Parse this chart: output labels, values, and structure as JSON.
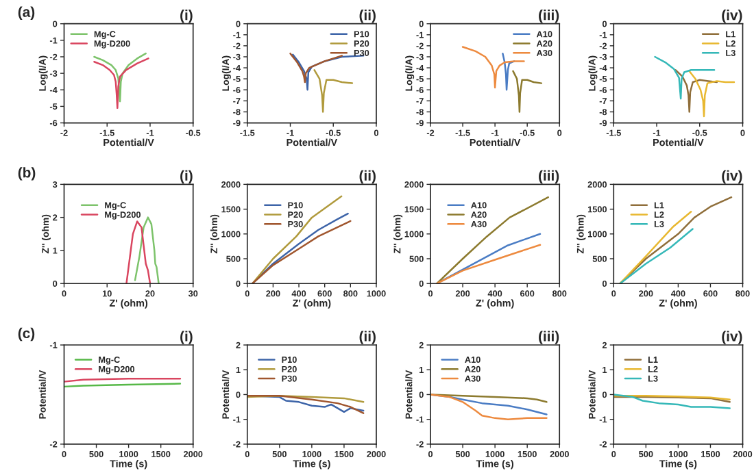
{
  "chart_data": [
    {
      "type": "line",
      "title": "(i)",
      "annotations": [
        "(a)"
      ],
      "xlabel": "Potential/V",
      "ylabel": "Log(I/A)",
      "xlim": [
        -2,
        -0.5
      ],
      "xticks": [
        -2,
        -1.5,
        -1,
        -0.5
      ],
      "ylim": [
        -6,
        0
      ],
      "yticks": [
        0,
        -1,
        -2,
        -3,
        -4,
        -5,
        -6
      ],
      "legend": "top left",
      "grid": false,
      "series": [
        {
          "name": "Mg-C",
          "color": "#7dc36b",
          "x": [
            -1.65,
            -1.55,
            -1.45,
            -1.4,
            -1.37,
            -1.36,
            -1.35,
            -1.34,
            -1.32,
            -1.25,
            -1.15,
            -1.05
          ],
          "values": [
            -2.0,
            -2.2,
            -2.5,
            -2.8,
            -3.3,
            -4.0,
            -4.7,
            -3.5,
            -3.0,
            -2.5,
            -2.1,
            -1.8
          ]
        },
        {
          "name": "Mg-D200",
          "color": "#d9455f",
          "x": [
            -1.65,
            -1.55,
            -1.47,
            -1.42,
            -1.4,
            -1.39,
            -1.38,
            -1.37,
            -1.35,
            -1.28,
            -1.15,
            -1.02
          ],
          "values": [
            -2.3,
            -2.5,
            -2.8,
            -3.1,
            -3.5,
            -4.2,
            -5.1,
            -3.8,
            -3.2,
            -2.8,
            -2.4,
            -2.1
          ]
        }
      ]
    },
    {
      "type": "line",
      "title": "(ii)",
      "xlabel": "Potential/V",
      "ylabel": "Log(I/A)",
      "xlim": [
        -1.5,
        0
      ],
      "xticks": [
        -1.5,
        -1,
        -0.5,
        0
      ],
      "ylim": [
        -9,
        0
      ],
      "yticks": [
        0,
        -1,
        -2,
        -3,
        -4,
        -5,
        -6,
        -7,
        -8,
        -9
      ],
      "legend": "top right",
      "grid": false,
      "series": [
        {
          "name": "P10",
          "color": "#3d64a8",
          "x": [
            -0.97,
            -0.9,
            -0.84,
            -0.81,
            -0.8,
            -0.79,
            -0.75,
            -0.6,
            -0.4,
            -0.15
          ],
          "values": [
            -2.8,
            -3.5,
            -4.3,
            -5.0,
            -6.0,
            -4.4,
            -3.9,
            -3.4,
            -3.0,
            -2.9
          ]
        },
        {
          "name": "P20",
          "color": "#b09a3c",
          "x": [
            -0.72,
            -0.66,
            -0.63,
            -0.62,
            -0.61,
            -0.58,
            -0.5,
            -0.4,
            -0.28
          ],
          "values": [
            -4.2,
            -5.0,
            -6.5,
            -8.0,
            -6.3,
            -5.1,
            -5.1,
            -5.3,
            -5.4
          ]
        },
        {
          "name": "P30",
          "color": "#a0562e",
          "x": [
            -1.0,
            -0.92,
            -0.86,
            -0.84,
            -0.83,
            -0.82,
            -0.78,
            -0.6,
            -0.4
          ],
          "values": [
            -2.7,
            -3.5,
            -4.3,
            -4.8,
            -5.3,
            -4.5,
            -4.0,
            -3.4,
            -2.9
          ]
        }
      ]
    },
    {
      "type": "line",
      "title": "(iii)",
      "xlabel": "Potential/V",
      "ylabel": "Log(I/A)",
      "xlim": [
        -2,
        0
      ],
      "xticks": [
        -2,
        -1.5,
        -1,
        -0.5,
        0
      ],
      "ylim": [
        -9,
        0
      ],
      "yticks": [
        0,
        -1,
        -2,
        -3,
        -4,
        -5,
        -6,
        -7,
        -8,
        -9
      ],
      "legend": "top right",
      "grid": false,
      "series": [
        {
          "name": "A10",
          "color": "#4a7cc4",
          "x": [
            -0.88,
            -0.85,
            -0.83,
            -0.82,
            -0.8,
            -0.78,
            -0.7
          ],
          "values": [
            -2.7,
            -3.5,
            -4.6,
            -6.0,
            -4.2,
            -3.6,
            -3.4
          ]
        },
        {
          "name": "A20",
          "color": "#8c7a2e",
          "x": [
            -0.72,
            -0.66,
            -0.63,
            -0.62,
            -0.61,
            -0.58,
            -0.5,
            -0.4,
            -0.28
          ],
          "values": [
            -4.3,
            -5.0,
            -6.5,
            -8.0,
            -6.3,
            -5.1,
            -5.1,
            -5.3,
            -5.4
          ]
        },
        {
          "name": "A30",
          "color": "#ed8a3f",
          "x": [
            -1.5,
            -1.3,
            -1.15,
            -1.05,
            -1.01,
            -1.0,
            -0.98,
            -0.93,
            -0.85,
            -0.7,
            -0.55
          ],
          "values": [
            -2.1,
            -2.5,
            -3.0,
            -3.8,
            -4.6,
            -5.8,
            -4.3,
            -3.8,
            -3.5,
            -3.4,
            -3.4
          ]
        }
      ]
    },
    {
      "type": "line",
      "title": "(iv)",
      "xlabel": "Potential/V",
      "ylabel": "Log(I/A)",
      "xlim": [
        -1.5,
        0
      ],
      "xticks": [
        -1.5,
        -1,
        -0.5,
        0
      ],
      "ylim": [
        -9,
        0
      ],
      "yticks": [
        0,
        -1,
        -2,
        -3,
        -4,
        -5,
        -6,
        -7,
        -8,
        -9
      ],
      "legend": "top right",
      "grid": false,
      "series": [
        {
          "name": "L1",
          "color": "#8f6e3a",
          "x": [
            -0.78,
            -0.7,
            -0.65,
            -0.63,
            -0.62,
            -0.61,
            -0.58,
            -0.5,
            -0.4,
            -0.3
          ],
          "values": [
            -4.2,
            -4.8,
            -5.6,
            -6.5,
            -8.0,
            -6.2,
            -5.3,
            -5.1,
            -5.2,
            -5.3
          ]
        },
        {
          "name": "L2",
          "color": "#e8b830",
          "x": [
            -0.62,
            -0.55,
            -0.49,
            -0.46,
            -0.45,
            -0.44,
            -0.41,
            -0.3,
            -0.2,
            -0.1
          ],
          "values": [
            -4.3,
            -5.0,
            -6.0,
            -7.0,
            -8.4,
            -6.5,
            -5.4,
            -5.2,
            -5.3,
            -5.3
          ]
        },
        {
          "name": "L3",
          "color": "#35b8b8",
          "x": [
            -1.02,
            -0.9,
            -0.8,
            -0.74,
            -0.72,
            -0.71,
            -0.68,
            -0.6,
            -0.45,
            -0.33
          ],
          "values": [
            -3.0,
            -3.5,
            -4.1,
            -4.9,
            -6.8,
            -5.0,
            -4.4,
            -4.2,
            -4.2,
            -4.2
          ]
        }
      ]
    },
    {
      "type": "line",
      "title": "(i)",
      "annotations": [
        "(b)"
      ],
      "xlabel": "Z' (ohm)",
      "ylabel": "Z'' (ohm)",
      "xlim": [
        0,
        30
      ],
      "xticks": [
        0,
        10,
        20,
        30
      ],
      "ylim": [
        0,
        3
      ],
      "yticks": [
        0,
        1,
        2,
        3
      ],
      "legend": "top left",
      "grid": false,
      "series": [
        {
          "name": "Mg-C",
          "color": "#7dc36b",
          "x": [
            16.5,
            17.5,
            18.5,
            19.5,
            20.3,
            21.0,
            21.2,
            21.5,
            22.0
          ],
          "values": [
            0.1,
            0.8,
            1.7,
            2.0,
            1.8,
            1.0,
            0.6,
            0.5,
            0.0
          ]
        },
        {
          "name": "Mg-D200",
          "color": "#d9455f",
          "x": [
            14.5,
            15.0,
            16.0,
            17.0,
            18.0,
            19.0,
            19.5,
            20.0
          ],
          "values": [
            0.0,
            0.5,
            1.5,
            1.88,
            1.7,
            0.6,
            0.4,
            0.0
          ]
        }
      ]
    },
    {
      "type": "line",
      "title": "(ii)",
      "xlabel": "Z' (ohm)",
      "ylabel": "Z'' (ohm)",
      "xlim": [
        0,
        1000
      ],
      "xticks": [
        0,
        200,
        400,
        600,
        800,
        1000
      ],
      "ylim": [
        0,
        2000
      ],
      "yticks": [
        0,
        500,
        1000,
        1500,
        2000
      ],
      "legend": "top left",
      "grid": false,
      "series": [
        {
          "name": "P10",
          "color": "#3d64a8",
          "x": [
            40,
            200,
            400,
            550,
            700,
            780
          ],
          "values": [
            0,
            400,
            800,
            1080,
            1300,
            1410
          ]
        },
        {
          "name": "P20",
          "color": "#b09a3c",
          "x": [
            40,
            200,
            380,
            500,
            730
          ],
          "values": [
            0,
            500,
            950,
            1330,
            1760
          ]
        },
        {
          "name": "P30",
          "color": "#a0562e",
          "x": [
            40,
            200,
            400,
            550,
            800
          ],
          "values": [
            0,
            370,
            700,
            950,
            1260
          ]
        }
      ]
    },
    {
      "type": "line",
      "title": "(iii)",
      "xlabel": "Z' (ohm)",
      "ylabel": "Z'' (ohm)",
      "xlim": [
        0,
        800
      ],
      "xticks": [
        0,
        200,
        400,
        600,
        800
      ],
      "ylim": [
        0,
        2000
      ],
      "yticks": [
        0,
        500,
        1000,
        1500,
        2000
      ],
      "legend": "top left",
      "grid": false,
      "series": [
        {
          "name": "A10",
          "color": "#4a7cc4",
          "x": [
            40,
            200,
            480,
            680
          ],
          "values": [
            0,
            280,
            770,
            1000
          ]
        },
        {
          "name": "A20",
          "color": "#8c7a2e",
          "x": [
            40,
            200,
            350,
            490,
            730
          ],
          "values": [
            0,
            500,
            950,
            1330,
            1740
          ]
        },
        {
          "name": "A30",
          "color": "#ed8a3f",
          "x": [
            40,
            200,
            400,
            680
          ],
          "values": [
            0,
            260,
            480,
            780
          ]
        }
      ]
    },
    {
      "type": "line",
      "title": "(iv)",
      "xlabel": "Z' (ohm)",
      "ylabel": "Z'' (ohm)",
      "xlim": [
        0,
        800
      ],
      "xticks": [
        0,
        200,
        400,
        600,
        800
      ],
      "ylim": [
        0,
        2000
      ],
      "yticks": [
        0,
        500,
        1000,
        1500,
        2000
      ],
      "legend": "top left",
      "grid": false,
      "series": [
        {
          "name": "L1",
          "color": "#8f6e3a",
          "x": [
            40,
            200,
            400,
            500,
            600,
            730
          ],
          "values": [
            0,
            500,
            1000,
            1330,
            1550,
            1740
          ]
        },
        {
          "name": "L2",
          "color": "#e8b830",
          "x": [
            40,
            200,
            370,
            480
          ],
          "values": [
            0,
            550,
            1150,
            1450
          ]
        },
        {
          "name": "L3",
          "color": "#35b8b8",
          "x": [
            40,
            200,
            350,
            490
          ],
          "values": [
            0,
            400,
            720,
            1100
          ]
        }
      ]
    },
    {
      "type": "line",
      "title": "(i)",
      "annotations": [
        "(c)"
      ],
      "xlabel": "Time (s)",
      "ylabel": "Potential/V",
      "xlim": [
        0,
        2000
      ],
      "xticks": [
        0,
        500,
        1000,
        1500,
        2000
      ],
      "ylim": [
        -2,
        -1
      ],
      "yticks": [
        -1,
        -2
      ],
      "legend": "top left",
      "grid": false,
      "series": [
        {
          "name": "Mg-C",
          "color": "#56b847",
          "x": [
            0,
            300,
            1000,
            1800
          ],
          "values": [
            -1.42,
            -1.41,
            -1.4,
            -1.39
          ]
        },
        {
          "name": "Mg-D200",
          "color": "#d9455f",
          "x": [
            0,
            300,
            1000,
            1800
          ],
          "values": [
            -1.37,
            -1.35,
            -1.34,
            -1.34
          ]
        }
      ]
    },
    {
      "type": "line",
      "title": "(ii)",
      "xlabel": "Time (s)",
      "ylabel": "Potential/V",
      "xlim": [
        0,
        2000
      ],
      "xticks": [
        0,
        500,
        1000,
        1500,
        2000
      ],
      "ylim": [
        -2,
        2
      ],
      "yticks": [
        -2,
        -1,
        0,
        1,
        2
      ],
      "legend": "top left",
      "grid": false,
      "series": [
        {
          "name": "P10",
          "color": "#3d64a8",
          "x": [
            0,
            500,
            600,
            800,
            1000,
            1200,
            1300,
            1500,
            1600,
            1800
          ],
          "values": [
            -0.05,
            -0.1,
            -0.25,
            -0.3,
            -0.45,
            -0.5,
            -0.4,
            -0.7,
            -0.55,
            -0.65
          ]
        },
        {
          "name": "P20",
          "color": "#b09a3c",
          "x": [
            0,
            500,
            1000,
            1500,
            1800
          ],
          "values": [
            -0.1,
            -0.05,
            -0.1,
            -0.15,
            -0.3
          ]
        },
        {
          "name": "P30",
          "color": "#a0562e",
          "x": [
            0,
            500,
            1000,
            1400,
            1600,
            1800
          ],
          "values": [
            -0.05,
            -0.05,
            -0.2,
            -0.35,
            -0.5,
            -0.75
          ]
        }
      ]
    },
    {
      "type": "line",
      "title": "(iii)",
      "xlabel": "Time (s)",
      "ylabel": "Potential/V",
      "xlim": [
        0,
        2000
      ],
      "xticks": [
        0,
        500,
        1000,
        1500,
        2000
      ],
      "ylim": [
        -2,
        2
      ],
      "yticks": [
        -2,
        -1,
        0,
        1,
        2
      ],
      "legend": "top left",
      "grid": false,
      "series": [
        {
          "name": "A10",
          "color": "#4a7cc4",
          "x": [
            0,
            300,
            500,
            800,
            1200,
            1500,
            1800
          ],
          "values": [
            0,
            -0.1,
            -0.2,
            -0.35,
            -0.45,
            -0.6,
            -0.8
          ]
        },
        {
          "name": "A20",
          "color": "#8c7a2e",
          "x": [
            0,
            500,
            1000,
            1500,
            1650,
            1800
          ],
          "values": [
            0,
            -0.05,
            -0.1,
            -0.15,
            -0.2,
            -0.3
          ]
        },
        {
          "name": "A30",
          "color": "#ed8a3f",
          "x": [
            0,
            300,
            500,
            700,
            800,
            1000,
            1200,
            1500,
            1800
          ],
          "values": [
            0,
            -0.1,
            -0.3,
            -0.65,
            -0.85,
            -0.95,
            -1.0,
            -0.95,
            -0.95
          ]
        }
      ]
    },
    {
      "type": "line",
      "title": "(iv)",
      "xlabel": "Time (s)",
      "ylabel": "Potential/V",
      "xlim": [
        0,
        2000
      ],
      "xticks": [
        0,
        500,
        1000,
        1500,
        2000
      ],
      "ylim": [
        -2,
        2
      ],
      "yticks": [
        -2,
        -1,
        0,
        1,
        2
      ],
      "legend": "top left",
      "grid": false,
      "series": [
        {
          "name": "L1",
          "color": "#8f6e3a",
          "x": [
            0,
            500,
            1000,
            1500,
            1800
          ],
          "values": [
            -0.1,
            -0.1,
            -0.12,
            -0.15,
            -0.3
          ]
        },
        {
          "name": "L2",
          "color": "#e8b830",
          "x": [
            0,
            500,
            1000,
            1500,
            1800
          ],
          "values": [
            -0.05,
            -0.05,
            -0.08,
            -0.12,
            -0.2
          ]
        },
        {
          "name": "L3",
          "color": "#35b8b8",
          "x": [
            0,
            300,
            450,
            700,
            1000,
            1200,
            1500,
            1800
          ],
          "values": [
            0,
            -0.1,
            -0.25,
            -0.35,
            -0.4,
            -0.5,
            -0.5,
            -0.55
          ]
        }
      ]
    }
  ]
}
